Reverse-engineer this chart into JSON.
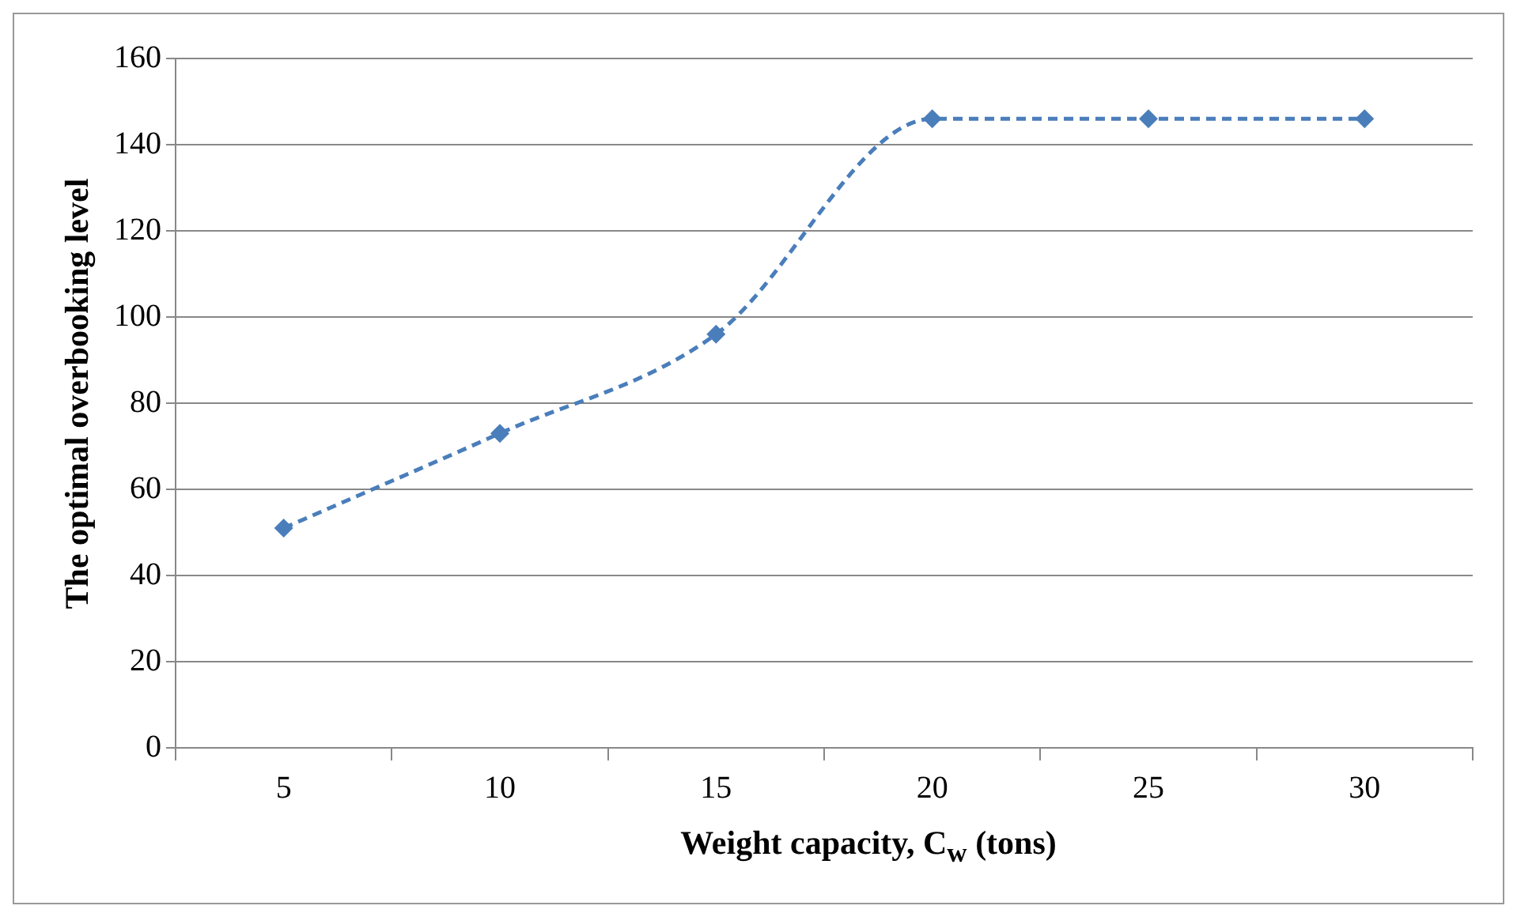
{
  "chart_data": {
    "type": "line",
    "xlabel": "Weight capacity, C$_{w}$ (tons)",
    "ylabel": "The optimal overbooking level",
    "categories": [
      "5",
      "10",
      "15",
      "20",
      "25",
      "30"
    ],
    "series": [
      {
        "color": "#4a7ebb",
        "values": [
          51,
          73,
          96,
          146,
          146,
          146
        ]
      }
    ],
    "ylim": [
      0,
      160
    ],
    "yticks": [
      0,
      20,
      40,
      60,
      80,
      100,
      120,
      140,
      160
    ],
    "grid": "y",
    "legend": false,
    "marker": "diamond",
    "line_style": "dashed"
  }
}
